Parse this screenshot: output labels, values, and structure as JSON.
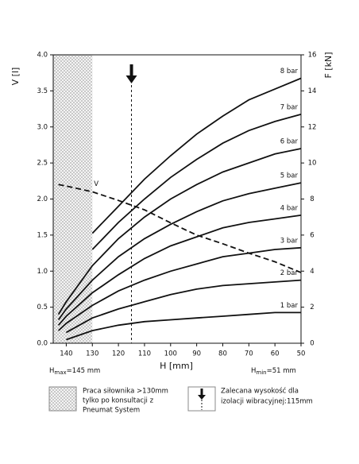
{
  "chart_data": {
    "type": "line",
    "x": [
      143,
      140,
      130,
      120,
      110,
      100,
      90,
      80,
      70,
      60,
      50
    ],
    "xlim": [
      145,
      50
    ],
    "xticks": [
      140,
      130,
      120,
      110,
      100,
      90,
      80,
      70,
      60,
      50
    ],
    "ylim": [
      0,
      4
    ],
    "yticks": [
      {
        "value": 0,
        "label": "0.0"
      },
      0.5,
      {
        "value": 1,
        "label": "1.0"
      },
      1.5,
      {
        "value": 2,
        "label": "2.0"
      },
      2.5,
      {
        "value": 3,
        "label": "3.0"
      },
      3.5,
      {
        "value": 4,
        "label": "4.0"
      }
    ],
    "y2lim": [
      0,
      16
    ],
    "y2ticks": [
      0,
      2,
      4,
      6,
      8,
      10,
      12,
      14,
      16
    ],
    "y_label": "V [l]",
    "y2_label": "F [kN]",
    "x_label": "H [mm]",
    "shaded_range": [
      145,
      130
    ],
    "recommended_h": 115,
    "h_max": {
      "symbol": "H",
      "sub": "max",
      "text": "=145 mm"
    },
    "h_min": {
      "symbol": "H",
      "sub": "min",
      "text": "=51 mm"
    },
    "series": [
      {
        "name": "V",
        "axis": "y",
        "dashed": true,
        "color": "#111",
        "values": [
          2.2,
          2.18,
          2.1,
          1.98,
          1.85,
          1.67,
          1.5,
          1.38,
          1.25,
          1.13,
          0.98
        ]
      },
      {
        "name": "1 bar",
        "axis": "y2",
        "color": "#111",
        "values": [
          null,
          0.2,
          0.7,
          1.0,
          1.2,
          1.3,
          1.4,
          1.5,
          1.6,
          1.7,
          1.7
        ]
      },
      {
        "name": "2 bar",
        "axis": "y2",
        "color": "#111",
        "values": [
          null,
          0.6,
          1.4,
          1.9,
          2.3,
          2.7,
          3.0,
          3.2,
          3.3,
          3.4,
          3.5
        ]
      },
      {
        "name": "3 bar",
        "axis": "y2",
        "color": "#111",
        "values": [
          0.7,
          1.1,
          2.1,
          2.9,
          3.5,
          4.0,
          4.4,
          4.8,
          5.0,
          5.2,
          5.3
        ]
      },
      {
        "name": "4 bar",
        "axis": "y2",
        "color": "#111",
        "values": [
          1.0,
          1.5,
          2.8,
          3.8,
          4.7,
          5.4,
          5.9,
          6.4,
          6.7,
          6.9,
          7.1
        ]
      },
      {
        "name": "5 bar",
        "axis": "y2",
        "color": "#111",
        "values": [
          1.3,
          1.9,
          3.5,
          4.8,
          5.8,
          6.6,
          7.3,
          7.9,
          8.3,
          8.6,
          8.9
        ]
      },
      {
        "name": "6 bar",
        "axis": "y2",
        "color": "#111",
        "values": [
          1.6,
          2.3,
          4.3,
          5.8,
          7.0,
          8.0,
          8.8,
          9.5,
          10.0,
          10.5,
          10.8
        ]
      },
      {
        "name": "7 bar",
        "axis": "y2",
        "color": "#111",
        "values": [
          null,
          null,
          5.2,
          6.7,
          8.0,
          9.2,
          10.2,
          11.1,
          11.8,
          12.3,
          12.7
        ]
      },
      {
        "name": "8 bar",
        "axis": "y2",
        "color": "#111",
        "values": [
          null,
          null,
          6.1,
          7.6,
          9.1,
          10.4,
          11.6,
          12.6,
          13.5,
          14.1,
          14.7
        ]
      }
    ]
  },
  "legend_notes": {
    "shaded": [
      "Praca siłownika >130mm",
      "tylko po konsultacji z",
      "Pneumat System"
    ],
    "arrow": [
      "Zalecana wysokość dla",
      "izolacji wibracyjnej:115mm"
    ]
  }
}
